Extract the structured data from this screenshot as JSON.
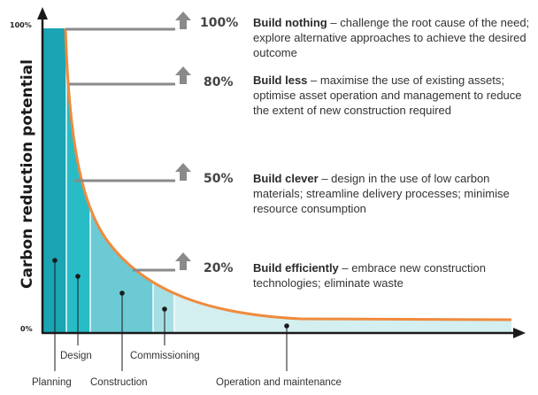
{
  "axis": {
    "y_label": "Carbon reduction potential",
    "y_top_tick": "100%",
    "y_bottom_tick": "0%"
  },
  "levels": [
    {
      "percent": "100%",
      "title": "Build nothing",
      "description": "challenge the root cause of the need; explore alternative approaches to achieve the desired outcome"
    },
    {
      "percent": "80%",
      "title": "Build less",
      "description": "maximise the use of existing assets; optimise asset operation and management to reduce the extent of new construction required"
    },
    {
      "percent": "50%",
      "title": "Build clever",
      "description": "design in the use of low carbon materials; streamline delivery processes; minimise resource consumption"
    },
    {
      "percent": "20%",
      "title": "Build efficiently",
      "description": "embrace new construction technologies; eliminate waste"
    }
  ],
  "stages": {
    "planning": "Planning",
    "design": "Design",
    "construction": "Construction",
    "commissioning": "Commissioning",
    "operation": "Operation and maintenance"
  },
  "colors": {
    "curve": "#f08a3c",
    "planning": "#1aa4b4",
    "design": "#28bcc6",
    "construction": "#6ccad4",
    "commissioning": "#a6dfe3",
    "operation": "#d4eff0",
    "arrow": "#8a8a8a",
    "axis": "#1a1a1a"
  }
}
